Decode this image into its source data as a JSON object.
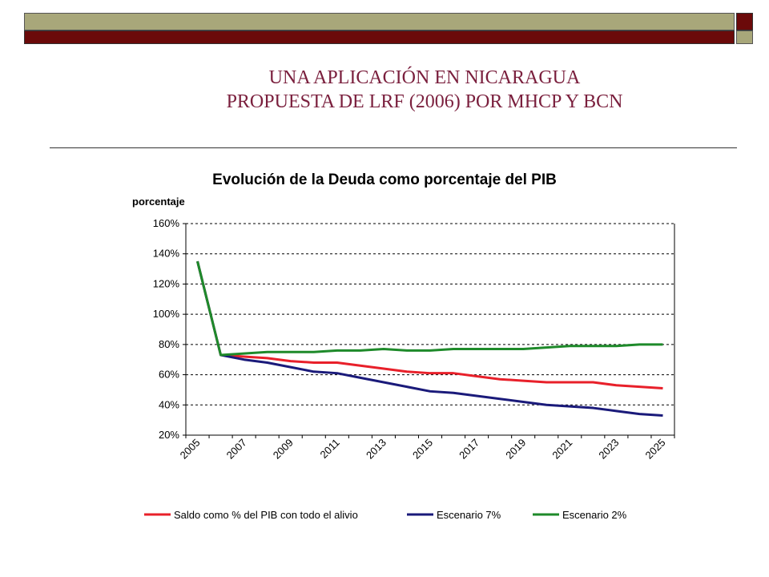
{
  "slide": {
    "title_line1": "UNA APLICACIÓN EN NICARAGUA",
    "title_line2": "PROPUESTA DE LRF (2006) POR MHCP Y BCN",
    "title_color": "#7A1F3D",
    "bar_colors": {
      "olive": "#A8A77A",
      "maroon": "#6B0A0A"
    }
  },
  "chart_data": {
    "type": "line",
    "title": "Evolución de la Deuda como porcentaje del PIB",
    "ylabel": "porcentaje",
    "xlabel": "",
    "ylim": [
      20,
      160
    ],
    "yticks": [
      20,
      40,
      60,
      80,
      100,
      120,
      140,
      160
    ],
    "ytick_labels": [
      "20%",
      "40%",
      "60%",
      "80%",
      "100%",
      "120%",
      "140%",
      "160%"
    ],
    "x": [
      2005,
      2006,
      2007,
      2008,
      2009,
      2010,
      2011,
      2012,
      2013,
      2014,
      2015,
      2016,
      2017,
      2018,
      2019,
      2020,
      2021,
      2022,
      2023,
      2024,
      2025
    ],
    "xtick_labels": [
      "2005",
      "2007",
      "2009",
      "2011",
      "2013",
      "2015",
      "2017",
      "2019",
      "2021",
      "2023",
      "2025"
    ],
    "grid": "horizontal dashed",
    "legend_position": "bottom",
    "series": [
      {
        "name": "Saldo como % del PIB con todo el alivio",
        "color": "#E8202A",
        "values": [
          135,
          73,
          72,
          71,
          69,
          68,
          68,
          66,
          64,
          62,
          61,
          61,
          59,
          57,
          56,
          55,
          55,
          55,
          53,
          52,
          51
        ]
      },
      {
        "name": "Escenario 7%",
        "color": "#1A1A7A",
        "values": [
          135,
          73,
          70,
          68,
          65,
          62,
          61,
          58,
          55,
          52,
          49,
          48,
          46,
          44,
          42,
          40,
          39,
          38,
          36,
          34,
          33
        ]
      },
      {
        "name": "Escenario 2%",
        "color": "#1E8A2A",
        "values": [
          135,
          73,
          74,
          75,
          75,
          75,
          76,
          76,
          77,
          76,
          76,
          77,
          77,
          77,
          77,
          78,
          79,
          79,
          79,
          80,
          80
        ]
      }
    ]
  }
}
